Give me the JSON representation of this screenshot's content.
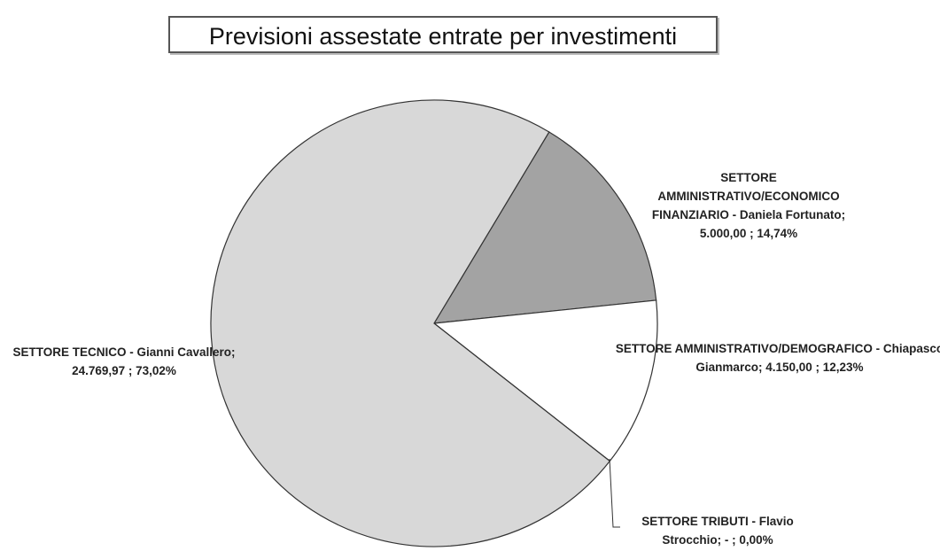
{
  "chart_data": {
    "type": "pie",
    "title": "Previsioni assestate entrate per investimenti",
    "categories": [
      "SETTORE AMMINISTRATIVO/ECONOMICO FINANZIARIO - Daniela Fortunato;",
      "SETTORE AMMINISTRATIVO/DEMOGRAFICO - Chiapasco Gianmarco;",
      "SETTORE TRIBUTI - Flavio Strocchio;",
      "SETTORE TECNICO - Gianni Cavallero;"
    ],
    "values": [
      5000,
      4150,
      0,
      24769.97
    ],
    "value_labels": [
      "5.000,00 ; 14,74%",
      "4.150,00 ; 12,23%",
      "-  ; 0,00%",
      "24.769,97 ; 73,02%"
    ],
    "colors": [
      "#a3a3a3",
      "#ffffff",
      "#f0f0f0",
      "#d8d8d8"
    ]
  }
}
